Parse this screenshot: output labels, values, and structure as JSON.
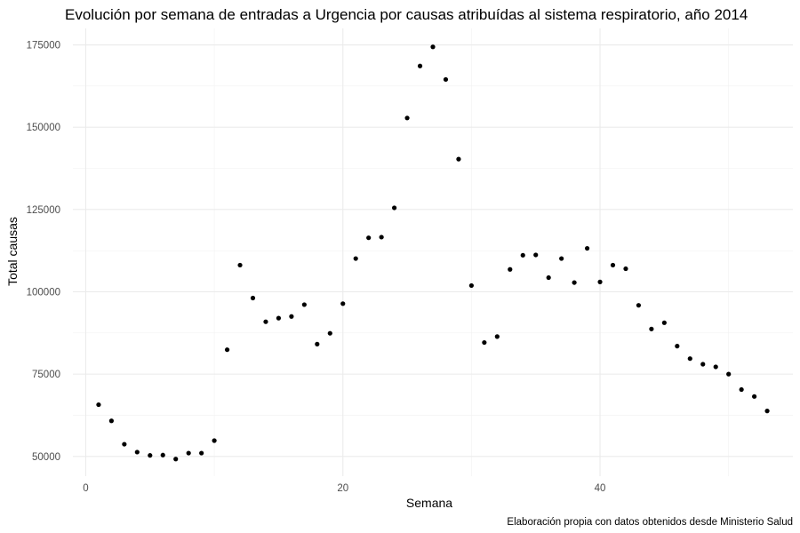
{
  "chart_data": {
    "type": "scatter",
    "title": "Evolución por semana de entradas a Urgencia por causas atribuídas al sistema respiratorio, año 2014",
    "xlabel": "Semana",
    "ylabel": "Total causas",
    "caption": "Elaboración propia con datos obtenidos desde Ministerio Salud",
    "xlim": [
      -1,
      55
    ],
    "ylim": [
      44000,
      180000
    ],
    "x_ticks": [
      "0",
      "20",
      "40"
    ],
    "x_tick_values": [
      0,
      20,
      40
    ],
    "y_ticks": [
      "50000",
      "75000",
      "100000",
      "125000",
      "150000",
      "175000"
    ],
    "y_tick_values": [
      50000,
      75000,
      100000,
      125000,
      150000,
      175000
    ],
    "grid": true,
    "point_color": "#000000",
    "x": [
      1,
      2,
      3,
      4,
      5,
      6,
      7,
      8,
      9,
      10,
      11,
      12,
      13,
      14,
      15,
      16,
      17,
      18,
      19,
      20,
      21,
      22,
      23,
      24,
      25,
      26,
      27,
      28,
      29,
      30,
      31,
      32,
      33,
      34,
      35,
      36,
      37,
      38,
      39,
      40,
      41,
      42,
      43,
      44,
      45,
      46,
      47,
      48,
      49,
      50,
      51,
      52,
      53
    ],
    "y": [
      65700,
      60800,
      53700,
      51300,
      50300,
      50400,
      49200,
      51000,
      51000,
      54800,
      82400,
      108100,
      98100,
      90900,
      92000,
      92500,
      96100,
      84100,
      87400,
      96400,
      110100,
      116400,
      116600,
      125500,
      152800,
      168600,
      174400,
      164500,
      140300,
      101900,
      84600,
      86400,
      106800,
      111100,
      111200,
      104300,
      110100,
      102800,
      113200,
      103000,
      108100,
      107000,
      95900,
      88700,
      90600,
      83500,
      79700,
      78000,
      77200,
      75000,
      70300,
      68200,
      63800
    ]
  }
}
